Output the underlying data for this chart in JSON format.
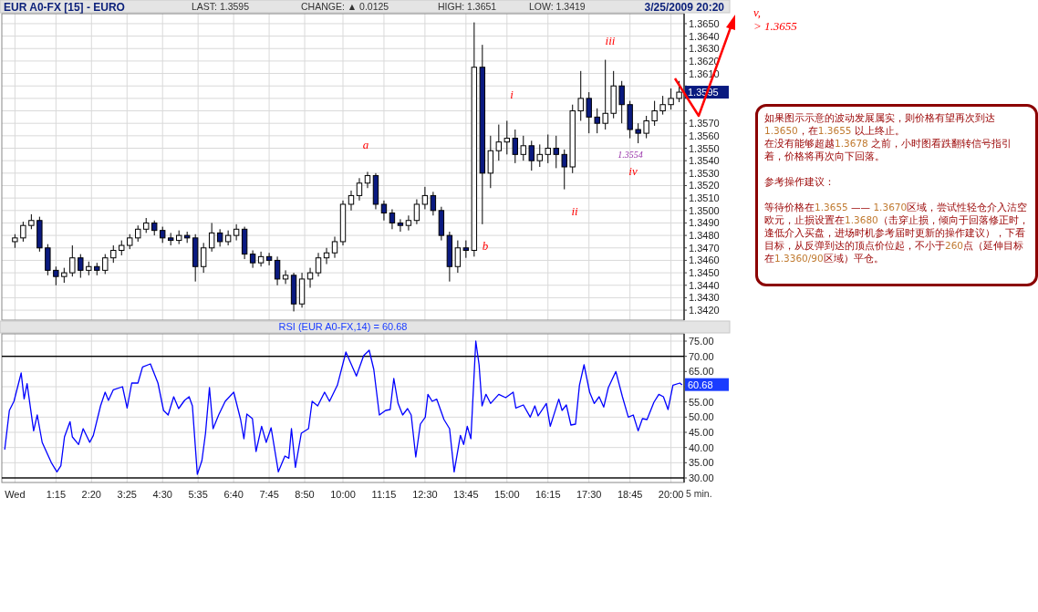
{
  "chart_data": [
    {
      "type": "candlestick",
      "title": "EUR A0-FX [15] - EURO",
      "x": [
        0,
        0.25,
        0.5,
        0.75,
        1,
        1.25,
        1.5,
        1.75,
        2,
        2.25,
        2.5,
        2.75,
        3,
        3.25,
        3.5,
        3.75,
        4,
        4.25,
        4.5,
        4.75,
        5,
        5.25,
        5.5,
        5.75,
        6,
        6.25,
        6.5,
        6.75,
        7,
        7.25,
        7.5,
        7.75,
        8,
        8.25,
        8.5,
        8.75,
        9,
        9.25,
        9.5,
        9.75,
        10,
        10.25,
        10.5,
        10.75,
        11,
        11.25,
        11.5,
        11.75,
        12,
        12.25,
        12.5,
        12.75,
        13,
        13.25,
        13.5,
        13.75,
        14,
        14.25,
        14.5,
        14.75,
        15,
        15.25,
        15.5,
        15.75,
        16,
        16.25,
        16.5,
        16.75,
        17,
        17.25,
        17.5,
        17.75,
        18,
        18.25,
        18.5,
        18.75,
        19,
        19.25,
        19.5,
        19.75,
        20,
        20.25
      ],
      "ohlc": [
        [
          1.3475,
          1.3481,
          1.347,
          1.3478
        ],
        [
          1.3478,
          1.3491,
          1.3475,
          1.3488
        ],
        [
          1.3488,
          1.3497,
          1.3485,
          1.3492
        ],
        [
          1.3492,
          1.3495,
          1.3467,
          1.347
        ],
        [
          1.347,
          1.3473,
          1.3448,
          1.3452
        ],
        [
          1.3452,
          1.3455,
          1.344,
          1.3447
        ],
        [
          1.3447,
          1.3454,
          1.3442,
          1.345
        ],
        [
          1.345,
          1.3472,
          1.3447,
          1.3462
        ],
        [
          1.3462,
          1.3465,
          1.3446,
          1.3452
        ],
        [
          1.3452,
          1.3459,
          1.3448,
          1.3455
        ],
        [
          1.3455,
          1.3458,
          1.3448,
          1.3452
        ],
        [
          1.3452,
          1.3465,
          1.3449,
          1.3462
        ],
        [
          1.3462,
          1.3472,
          1.3458,
          1.3468
        ],
        [
          1.3468,
          1.3476,
          1.3464,
          1.3472
        ],
        [
          1.3472,
          1.3481,
          1.3469,
          1.3478
        ],
        [
          1.3478,
          1.3488,
          1.3475,
          1.3485
        ],
        [
          1.3485,
          1.3494,
          1.3482,
          1.349
        ],
        [
          1.349,
          1.3492,
          1.348,
          1.3484
        ],
        [
          1.3484,
          1.3487,
          1.3474,
          1.3478
        ],
        [
          1.3478,
          1.3482,
          1.3472,
          1.3476
        ],
        [
          1.3476,
          1.3484,
          1.3473,
          1.348
        ],
        [
          1.348,
          1.3483,
          1.3474,
          1.3478
        ],
        [
          1.3478,
          1.3481,
          1.3443,
          1.3455
        ],
        [
          1.3455,
          1.3474,
          1.345,
          1.347
        ],
        [
          1.347,
          1.349,
          1.3467,
          1.3482
        ],
        [
          1.3482,
          1.3485,
          1.3471,
          1.3475
        ],
        [
          1.3475,
          1.3484,
          1.3472,
          1.348
        ],
        [
          1.348,
          1.3489,
          1.3476,
          1.3485
        ],
        [
          1.3485,
          1.3487,
          1.3461,
          1.3465
        ],
        [
          1.3465,
          1.3468,
          1.3454,
          1.3458
        ],
        [
          1.3458,
          1.3467,
          1.3455,
          1.3463
        ],
        [
          1.3463,
          1.3466,
          1.3456,
          1.346
        ],
        [
          1.346,
          1.3463,
          1.344,
          1.3445
        ],
        [
          1.3445,
          1.3452,
          1.3441,
          1.3448
        ],
        [
          1.3448,
          1.345,
          1.3419,
          1.3425
        ],
        [
          1.3425,
          1.345,
          1.3422,
          1.3445
        ],
        [
          1.3445,
          1.3454,
          1.3438,
          1.345
        ],
        [
          1.345,
          1.3466,
          1.3447,
          1.3462
        ],
        [
          1.3462,
          1.347,
          1.3457,
          1.3466
        ],
        [
          1.3466,
          1.3479,
          1.3462,
          1.3475
        ],
        [
          1.3475,
          1.3508,
          1.3472,
          1.3505
        ],
        [
          1.3505,
          1.3516,
          1.35,
          1.3512
        ],
        [
          1.3512,
          1.3526,
          1.3508,
          1.3522
        ],
        [
          1.3522,
          1.3531,
          1.3518,
          1.3528
        ],
        [
          1.3528,
          1.353,
          1.3501,
          1.3505
        ],
        [
          1.3505,
          1.3508,
          1.3492,
          1.3498
        ],
        [
          1.3498,
          1.3501,
          1.3485,
          1.349
        ],
        [
          1.349,
          1.3493,
          1.3483,
          1.3488
        ],
        [
          1.3488,
          1.3496,
          1.3484,
          1.3492
        ],
        [
          1.3492,
          1.3509,
          1.3489,
          1.3505
        ],
        [
          1.3505,
          1.3519,
          1.3501,
          1.3512
        ],
        [
          1.3512,
          1.3515,
          1.3496,
          1.35
        ],
        [
          1.35,
          1.3503,
          1.3476,
          1.348
        ],
        [
          1.348,
          1.3483,
          1.3443,
          1.3455
        ],
        [
          1.3455,
          1.3476,
          1.345,
          1.347
        ],
        [
          1.347,
          1.3476,
          1.3462,
          1.3468
        ],
        [
          1.3468,
          1.3651,
          1.3463,
          1.3615
        ],
        [
          1.3615,
          1.3633,
          1.3489,
          1.353
        ],
        [
          1.353,
          1.356,
          1.3518,
          1.3548
        ],
        [
          1.3548,
          1.3569,
          1.354,
          1.3555
        ],
        [
          1.3555,
          1.3572,
          1.3545,
          1.3558
        ],
        [
          1.3558,
          1.3565,
          1.3538,
          1.3545
        ],
        [
          1.3545,
          1.356,
          1.354,
          1.3552
        ],
        [
          1.3552,
          1.3556,
          1.3532,
          1.354
        ],
        [
          1.354,
          1.3553,
          1.3535,
          1.3545
        ],
        [
          1.3545,
          1.3561,
          1.3538,
          1.355
        ],
        [
          1.355,
          1.356,
          1.3534,
          1.3545
        ],
        [
          1.3545,
          1.3549,
          1.3517,
          1.3535
        ],
        [
          1.3535,
          1.3585,
          1.353,
          1.358
        ],
        [
          1.358,
          1.3612,
          1.3572,
          1.359
        ],
        [
          1.359,
          1.3595,
          1.3562,
          1.3575
        ],
        [
          1.3575,
          1.3582,
          1.3562,
          1.357
        ],
        [
          1.357,
          1.3621,
          1.3565,
          1.3578
        ],
        [
          1.3578,
          1.3612,
          1.3574,
          1.36
        ],
        [
          1.36,
          1.3604,
          1.357,
          1.3585
        ],
        [
          1.3585,
          1.3588,
          1.3558,
          1.3565
        ],
        [
          1.3565,
          1.357,
          1.3554,
          1.3562
        ],
        [
          1.3562,
          1.3576,
          1.3558,
          1.3572
        ],
        [
          1.3572,
          1.3588,
          1.3568,
          1.358
        ],
        [
          1.358,
          1.3592,
          1.3577,
          1.3585
        ],
        [
          1.3585,
          1.3598,
          1.3581,
          1.359
        ],
        [
          1.359,
          1.3604,
          1.3587,
          1.3595
        ]
      ],
      "xlim": [
        -0.4,
        20.4
      ],
      "ylim": [
        1.3412,
        1.3658
      ],
      "xticks": [
        {
          "value": 0,
          "label": null
        },
        {
          "value": 1.25,
          "label": null
        },
        {
          "value": 2.333,
          "label": null
        },
        {
          "value": 3.417,
          "label": null
        },
        {
          "value": 4.5,
          "label": null
        },
        {
          "value": 5.583,
          "label": null
        },
        {
          "value": 6.667,
          "label": null
        },
        {
          "value": 7.75,
          "label": null
        },
        {
          "value": 8.833,
          "label": null
        },
        {
          "value": 10,
          "label": null
        },
        {
          "value": 11.25,
          "label": null
        },
        {
          "value": 12.5,
          "label": null
        },
        {
          "value": 13.75,
          "label": null
        },
        {
          "value": 15,
          "label": null
        },
        {
          "value": 16.25,
          "label": null
        },
        {
          "value": 17.5,
          "label": null
        },
        {
          "value": 18.75,
          "label": null
        },
        {
          "value": 20,
          "label": null
        }
      ],
      "yticks": [
        {
          "value": 1.342,
          "label": "1.3420"
        },
        {
          "value": 1.343,
          "label": "1.3430"
        },
        {
          "value": 1.344,
          "label": "1.3440"
        },
        {
          "value": 1.345,
          "label": "1.3450"
        },
        {
          "value": 1.346,
          "label": "1.3460"
        },
        {
          "value": 1.347,
          "label": "1.3470"
        },
        {
          "value": 1.348,
          "label": "1.3480"
        },
        {
          "value": 1.349,
          "label": "1.3490"
        },
        {
          "value": 1.35,
          "label": "1.3500"
        },
        {
          "value": 1.351,
          "label": "1.3510"
        },
        {
          "value": 1.352,
          "label": "1.3520"
        },
        {
          "value": 1.353,
          "label": "1.3530"
        },
        {
          "value": 1.354,
          "label": "1.3540"
        },
        {
          "value": 1.355,
          "label": "1.3550"
        },
        {
          "value": 1.356,
          "label": "1.3560"
        },
        {
          "value": 1.357,
          "label": "1.3570"
        },
        {
          "value": 1.358,
          "label": null
        },
        {
          "value": 1.359,
          "label": null
        },
        {
          "value": 1.36,
          "label": null
        },
        {
          "value": 1.361,
          "label": "1.3610"
        },
        {
          "value": 1.362,
          "label": "1.3620"
        },
        {
          "value": 1.363,
          "label": "1.3630"
        },
        {
          "value": 1.364,
          "label": "1.3640"
        },
        {
          "value": 1.365,
          "label": "1.3650"
        }
      ],
      "tick_labels": "y",
      "grid": true,
      "annotations": [
        "LAST: 1.3595",
        "CHANGE: ▲ 0.0125",
        "HIGH: 1.3651",
        "LOW: 1.3419",
        "3/25/2009 20:20",
        "v,\n> 1.3655",
        "a",
        "b",
        "i",
        "ii",
        "iii",
        "iv",
        "1.3554",
        "1.3595"
      ]
    },
    {
      "type": "line",
      "title": "RSI (EUR A0-FX,14) = 60.68",
      "series": [
        {
          "color": "#0000ff",
          "x": [
            -0.31,
            -0.17,
            -0.03,
            0.19,
            0.28,
            0.37,
            0.57,
            0.68,
            0.83,
            1.11,
            1.28,
            1.4,
            1.51,
            1.68,
            1.75,
            1.94,
            2.08,
            2.28,
            2.39,
            2.61,
            2.75,
            2.85,
            3.0,
            3.28,
            3.42,
            3.56,
            3.75,
            3.89,
            4.13,
            4.36,
            4.53,
            4.67,
            4.84,
            4.99,
            5.17,
            5.31,
            5.41,
            5.56,
            5.7,
            5.81,
            5.93,
            6.04,
            6.21,
            6.41,
            6.67,
            6.88,
            6.98,
            7.07,
            7.24,
            7.35,
            7.52,
            7.66,
            7.81,
            8.03,
            8.23,
            8.35,
            8.43,
            8.55,
            8.73,
            8.95,
            9.06,
            9.23,
            9.44,
            9.59,
            9.83,
            10.09,
            10.26,
            10.41,
            10.63,
            10.8,
            10.94,
            11.11,
            11.3,
            11.44,
            11.55,
            11.68,
            11.82,
            11.97,
            12.08,
            12.22,
            12.36,
            12.51,
            12.59,
            12.72,
            12.86,
            13.08,
            13.25,
            13.39,
            13.58,
            13.68,
            13.79,
            13.9,
            14.05,
            14.15,
            14.24,
            14.36,
            14.5,
            14.75,
            14.96,
            15.19,
            15.27,
            15.5,
            15.71,
            15.85,
            15.95,
            16.2,
            16.32,
            16.58,
            16.68,
            16.81,
            16.95,
            17.09,
            17.21,
            17.35,
            17.52,
            17.66,
            17.81,
            17.95,
            18.09,
            18.32,
            18.52,
            18.7,
            18.85,
            19.0,
            19.13,
            19.27,
            19.48,
            19.63,
            19.77,
            19.91,
            20.06,
            20.27,
            20.33
          ],
          "values": [
            39.5,
            52.2,
            55.2,
            64.5,
            56,
            61,
            45.5,
            50.7,
            41.7,
            35,
            32,
            34,
            43.5,
            48.5,
            43.5,
            41,
            46.2,
            41.7,
            44,
            53.7,
            58.2,
            55.5,
            59,
            60,
            53,
            61.2,
            61.2,
            66.5,
            67.5,
            61.2,
            52.2,
            50.7,
            56.7,
            52.8,
            55.5,
            56.7,
            53.7,
            31.2,
            35.7,
            44.7,
            59.7,
            46.2,
            50.7,
            55.2,
            58.2,
            49.2,
            42.9,
            51,
            49.5,
            38.7,
            47,
            41.7,
            46.5,
            32,
            37.2,
            36.5,
            46.2,
            33.5,
            44.7,
            46.2,
            55.2,
            53.7,
            58.2,
            55.2,
            60.5,
            71.4,
            67.2,
            63.5,
            70.2,
            72,
            65.7,
            50.7,
            52.2,
            52.5,
            62.7,
            54.5,
            50.7,
            52.8,
            50.7,
            36.9,
            47.7,
            50,
            57.5,
            55.2,
            55.9,
            49.2,
            46.2,
            32,
            44,
            41,
            47,
            42.9,
            75,
            67.2,
            53.7,
            57.5,
            54.5,
            57.5,
            56.4,
            58.2,
            53,
            54,
            50,
            53.7,
            50.4,
            54.5,
            47,
            55.9,
            52.2,
            54,
            47.4,
            47.7,
            60.5,
            67.2,
            58.2,
            54.5,
            56.7,
            53.3,
            59.7,
            65,
            56.7,
            50,
            50.7,
            45.5,
            49.5,
            49.2,
            54.9,
            57.5,
            56.7,
            52.5,
            60.5,
            61.2,
            60.7
          ]
        }
      ],
      "xlim": [
        -0.4,
        20.4
      ],
      "ylim": [
        28.5,
        77.4
      ],
      "xticks": [
        {
          "value": 0,
          "label": "Wed"
        },
        {
          "value": 1.25,
          "label": "1:15"
        },
        {
          "value": 2.333,
          "label": "2:20"
        },
        {
          "value": 3.417,
          "label": "3:25"
        },
        {
          "value": 4.5,
          "label": "4:30"
        },
        {
          "value": 5.583,
          "label": "5:35"
        },
        {
          "value": 6.667,
          "label": "6:40"
        },
        {
          "value": 7.75,
          "label": "7:45"
        },
        {
          "value": 8.833,
          "label": "8:50"
        },
        {
          "value": 10,
          "label": "10:00"
        },
        {
          "value": 11.25,
          "label": "11:15"
        },
        {
          "value": 12.5,
          "label": "12:30"
        },
        {
          "value": 13.75,
          "label": "13:45"
        },
        {
          "value": 15,
          "label": "15:00"
        },
        {
          "value": 16.25,
          "label": "16:15"
        },
        {
          "value": 17.5,
          "label": "17:30"
        },
        {
          "value": 18.75,
          "label": "18:45"
        },
        {
          "value": 20,
          "label": "20:00"
        }
      ],
      "yticks": [
        {
          "value": 30,
          "label": "30.00"
        },
        {
          "value": 35,
          "label": "35.00"
        },
        {
          "value": 40,
          "label": "40.00"
        },
        {
          "value": 45,
          "label": "45.00"
        },
        {
          "value": 50,
          "label": "50.00"
        },
        {
          "value": 55,
          "label": "55.00"
        },
        {
          "value": 60,
          "label": null
        },
        {
          "value": 65,
          "label": "65.00"
        },
        {
          "value": 70,
          "label": "70.00"
        },
        {
          "value": 75,
          "label": "75.00"
        }
      ],
      "grid": true,
      "ref_lines": [
        {
          "axis": "y",
          "value": 70,
          "color": "#000000"
        },
        {
          "axis": "y",
          "value": 30,
          "color": "#000000"
        }
      ],
      "annotations": [
        "5 min.",
        "60.68"
      ]
    },
    {
      "type": "other",
      "annotations": [
        "如果图示示意的波动发展属实，则价格有望再次到达1.3650，在1.3655 以上终止。",
        "在没有能够超越1.3678 之前，小时图看跌翻转信号指引着，价格将再次向下回落。",
        "参考操作建议：",
        "等待价格在1.3655 —— 1.3670区域，尝试性轻仓介入沽空欧元，止损设置在1.3680（击穿止损，倾向于回落修正时，逢低介入买盘，进场时机参考届时更新的操作建议），下看目标，从反弹到达的顶点价位起，不小于260点（延伸目标在1.3360/90区域）平仓。"
      ]
    }
  ]
}
